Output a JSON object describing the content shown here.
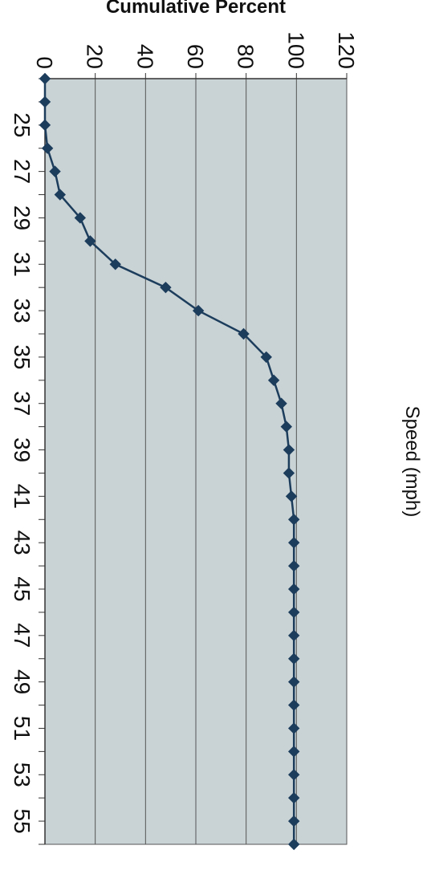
{
  "chart_data": {
    "type": "line",
    "xlabel": "Speed (mph)",
    "ylabel": "Cumulative Percent",
    "xlim": [
      23,
      56
    ],
    "ylim": [
      0,
      120
    ],
    "x_ticks": [
      "25",
      "27",
      "29",
      "31",
      "33",
      "35",
      "37",
      "39",
      "41",
      "43",
      "45",
      "47",
      "49",
      "51",
      "53",
      "55"
    ],
    "y_ticks": [
      "0",
      "20",
      "40",
      "60",
      "80",
      "100",
      "120"
    ],
    "grid": true,
    "x": [
      23,
      24,
      25,
      26,
      27,
      28,
      29,
      30,
      31,
      32,
      33,
      34,
      35,
      36,
      37,
      38,
      39,
      40,
      41,
      42,
      43,
      44,
      45,
      46,
      47,
      48,
      49,
      50,
      51,
      52,
      53,
      54,
      55,
      56
    ],
    "series": [
      {
        "values": [
          0,
          0,
          0,
          1,
          4,
          6,
          14,
          18,
          28,
          48,
          61,
          79,
          88,
          91,
          94,
          96,
          97,
          97,
          98,
          99,
          99,
          99,
          99,
          99,
          99,
          99,
          99,
          99,
          99,
          99,
          99,
          99,
          99,
          99
        ]
      }
    ],
    "colors": {
      "plot_background": "#c9d3d6",
      "line": "#1d3d5c",
      "marker": "#1d3d5c",
      "gridline": "#555555"
    }
  }
}
